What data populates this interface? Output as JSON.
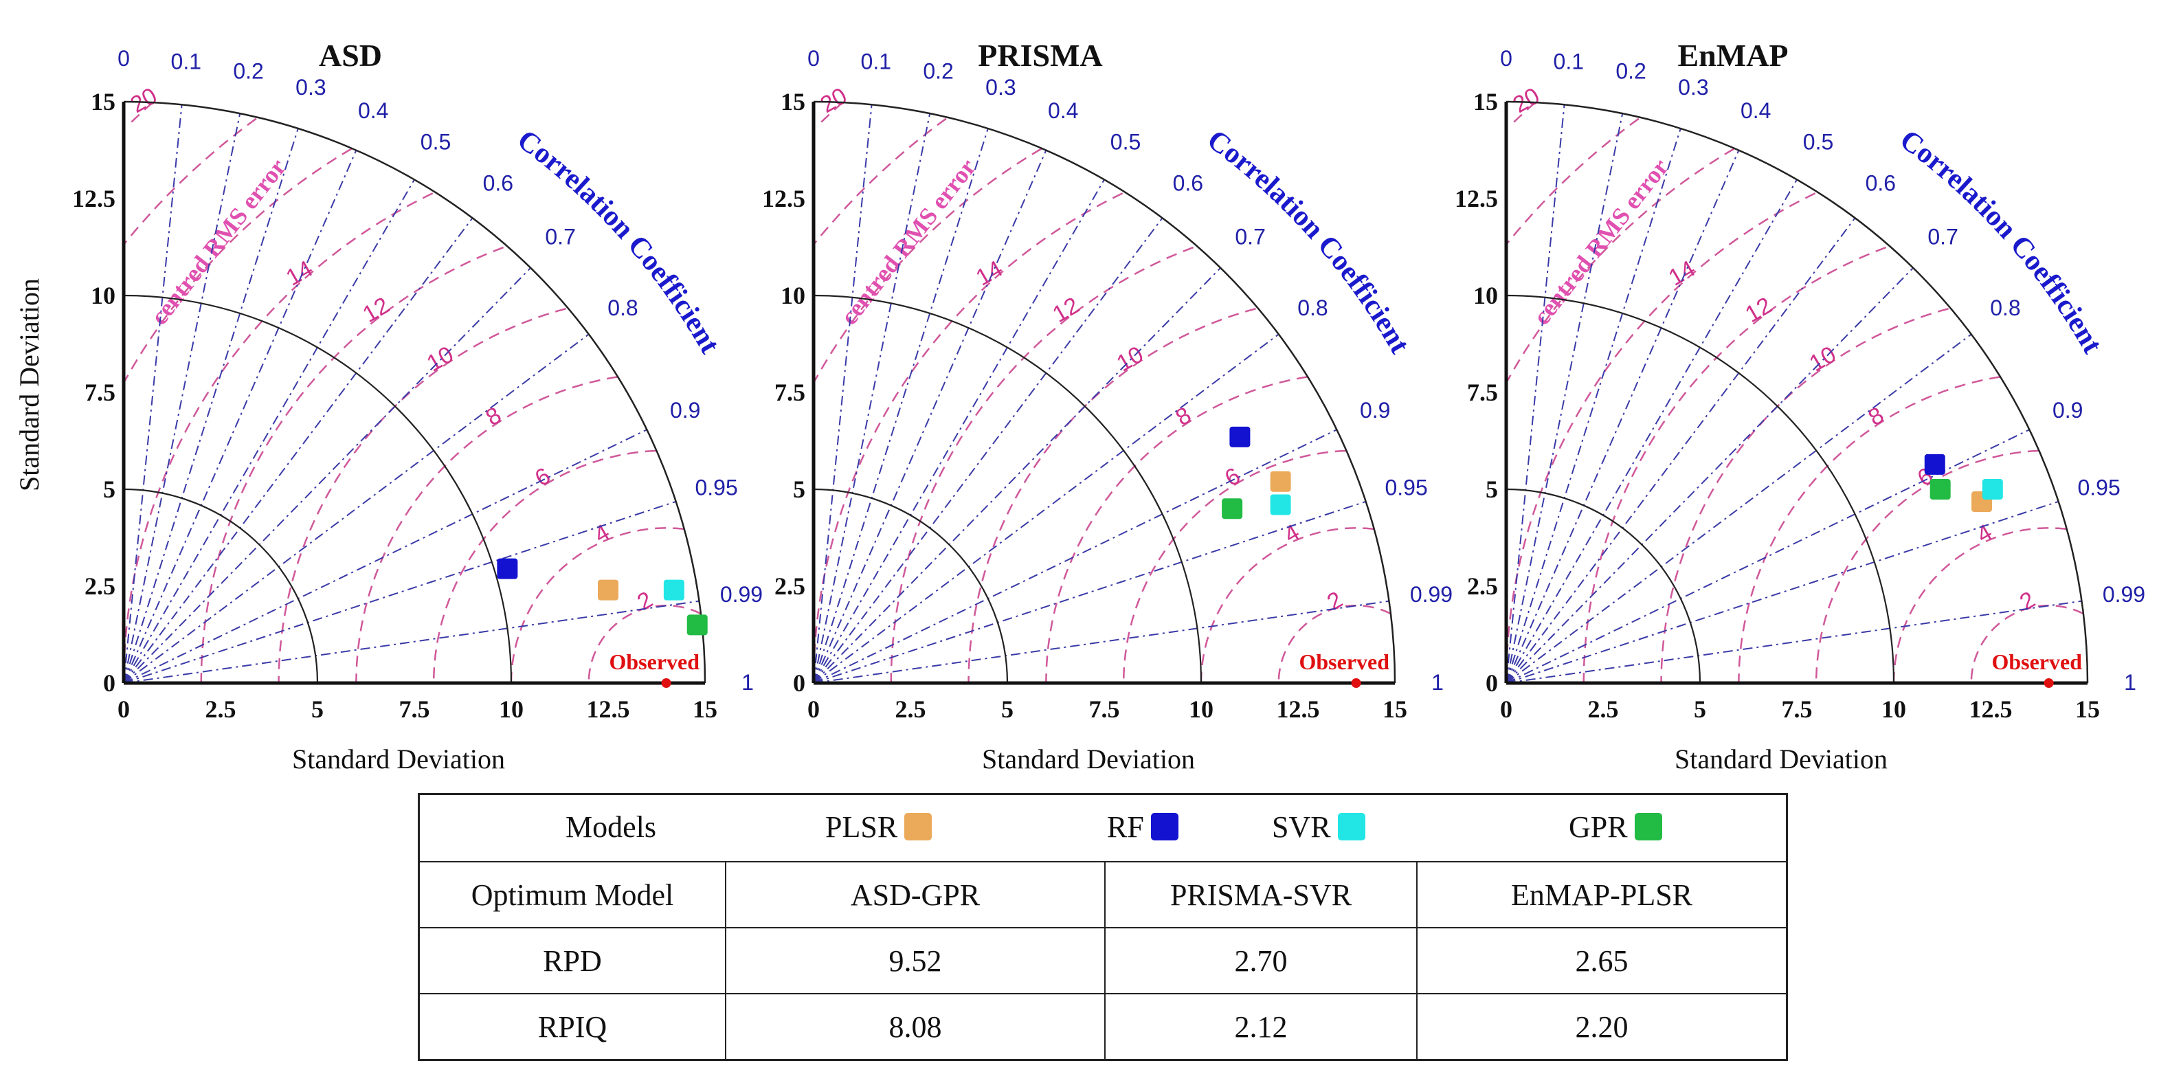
{
  "chart_data": [
    {
      "type": "scatter",
      "subtype": "taylor-diagram",
      "title": "ASD",
      "xlabel": "Standard Deviation",
      "ylabel": "Standard Deviation",
      "sd_ticks": [
        "0",
        "2.5",
        "5",
        "7.5",
        "10",
        "12.5",
        "15"
      ],
      "sd_range": [
        0,
        15
      ],
      "corr_ticks": [
        "0",
        "0.1",
        "0.2",
        "0.3",
        "0.4",
        "0.5",
        "0.6",
        "0.7",
        "0.8",
        "0.9",
        "0.95",
        "0.99",
        "1"
      ],
      "corr_label": "Correlation Coefficient",
      "rms_label": "centred RMS error",
      "rms_ticks": [
        "2",
        "4",
        "6",
        "8",
        "10",
        "12",
        "14",
        "20"
      ],
      "observed": {
        "label": "Observed",
        "sd": 14
      },
      "points": [
        {
          "model": "RF",
          "x": 9.9,
          "y": 2.95
        },
        {
          "model": "PLSR",
          "x": 12.5,
          "y": 2.4
        },
        {
          "model": "SVR",
          "x": 14.2,
          "y": 2.4
        },
        {
          "model": "GPR",
          "x": 14.8,
          "y": 1.5
        }
      ]
    },
    {
      "type": "scatter",
      "subtype": "taylor-diagram",
      "title": "PRISMA",
      "xlabel": "Standard Deviation",
      "ylabel": "",
      "sd_ticks": [
        "0",
        "2.5",
        "5",
        "7.5",
        "10",
        "12.5",
        "15"
      ],
      "sd_range": [
        0,
        15
      ],
      "corr_ticks": [
        "0",
        "0.1",
        "0.2",
        "0.3",
        "0.4",
        "0.5",
        "0.6",
        "0.7",
        "0.8",
        "0.9",
        "0.95",
        "0.99",
        "1"
      ],
      "corr_label": "Correlation Coefficient",
      "rms_label": "centred RMS error",
      "rms_ticks": [
        "2",
        "4",
        "6",
        "8",
        "10",
        "12",
        "14",
        "20"
      ],
      "observed": {
        "label": "Observed",
        "sd": 14
      },
      "points": [
        {
          "model": "RF",
          "x": 11.0,
          "y": 6.35
        },
        {
          "model": "PLSR",
          "x": 12.05,
          "y": 5.2
        },
        {
          "model": "SVR",
          "x": 12.05,
          "y": 4.6
        },
        {
          "model": "GPR",
          "x": 10.8,
          "y": 4.5
        }
      ]
    },
    {
      "type": "scatter",
      "subtype": "taylor-diagram",
      "title": "EnMAP",
      "xlabel": "Standard Deviation",
      "ylabel": "",
      "sd_ticks": [
        "0",
        "2.5",
        "5",
        "7.5",
        "10",
        "12.5",
        "15"
      ],
      "sd_range": [
        0,
        15
      ],
      "corr_ticks": [
        "0",
        "0.1",
        "0.2",
        "0.3",
        "0.4",
        "0.5",
        "0.6",
        "0.7",
        "0.8",
        "0.9",
        "0.95",
        "0.99",
        "1"
      ],
      "corr_label": "Correlation Coefficient",
      "rms_label": "centred RMS error",
      "rms_ticks": [
        "2",
        "4",
        "6",
        "8",
        "10",
        "12",
        "14",
        "20"
      ],
      "observed": {
        "label": "Observed",
        "sd": 14
      },
      "points": [
        {
          "model": "RF",
          "x": 11.06,
          "y": 5.64
        },
        {
          "model": "GPR",
          "x": 11.2,
          "y": 5.0
        },
        {
          "model": "PLSR",
          "x": 12.27,
          "y": 4.68
        },
        {
          "model": "SVR",
          "x": 12.55,
          "y": 5.0
        }
      ]
    }
  ],
  "model_colors": {
    "PLSR": "#eba95a",
    "RF": "#1212d0",
    "SVR": "#22e6e6",
    "GPR": "#22bb44"
  },
  "table": {
    "legend_title": "Models",
    "legend": [
      "PLSR",
      "RF",
      "SVR",
      "GPR"
    ],
    "rows": [
      [
        "Optimum Model",
        "ASD-GPR",
        "PRISMA-SVR",
        "EnMAP-PLSR"
      ],
      [
        "RPD",
        "9.52",
        "2.70",
        "2.65"
      ],
      [
        "RPIQ",
        "8.08",
        "2.12",
        "2.20"
      ]
    ]
  }
}
